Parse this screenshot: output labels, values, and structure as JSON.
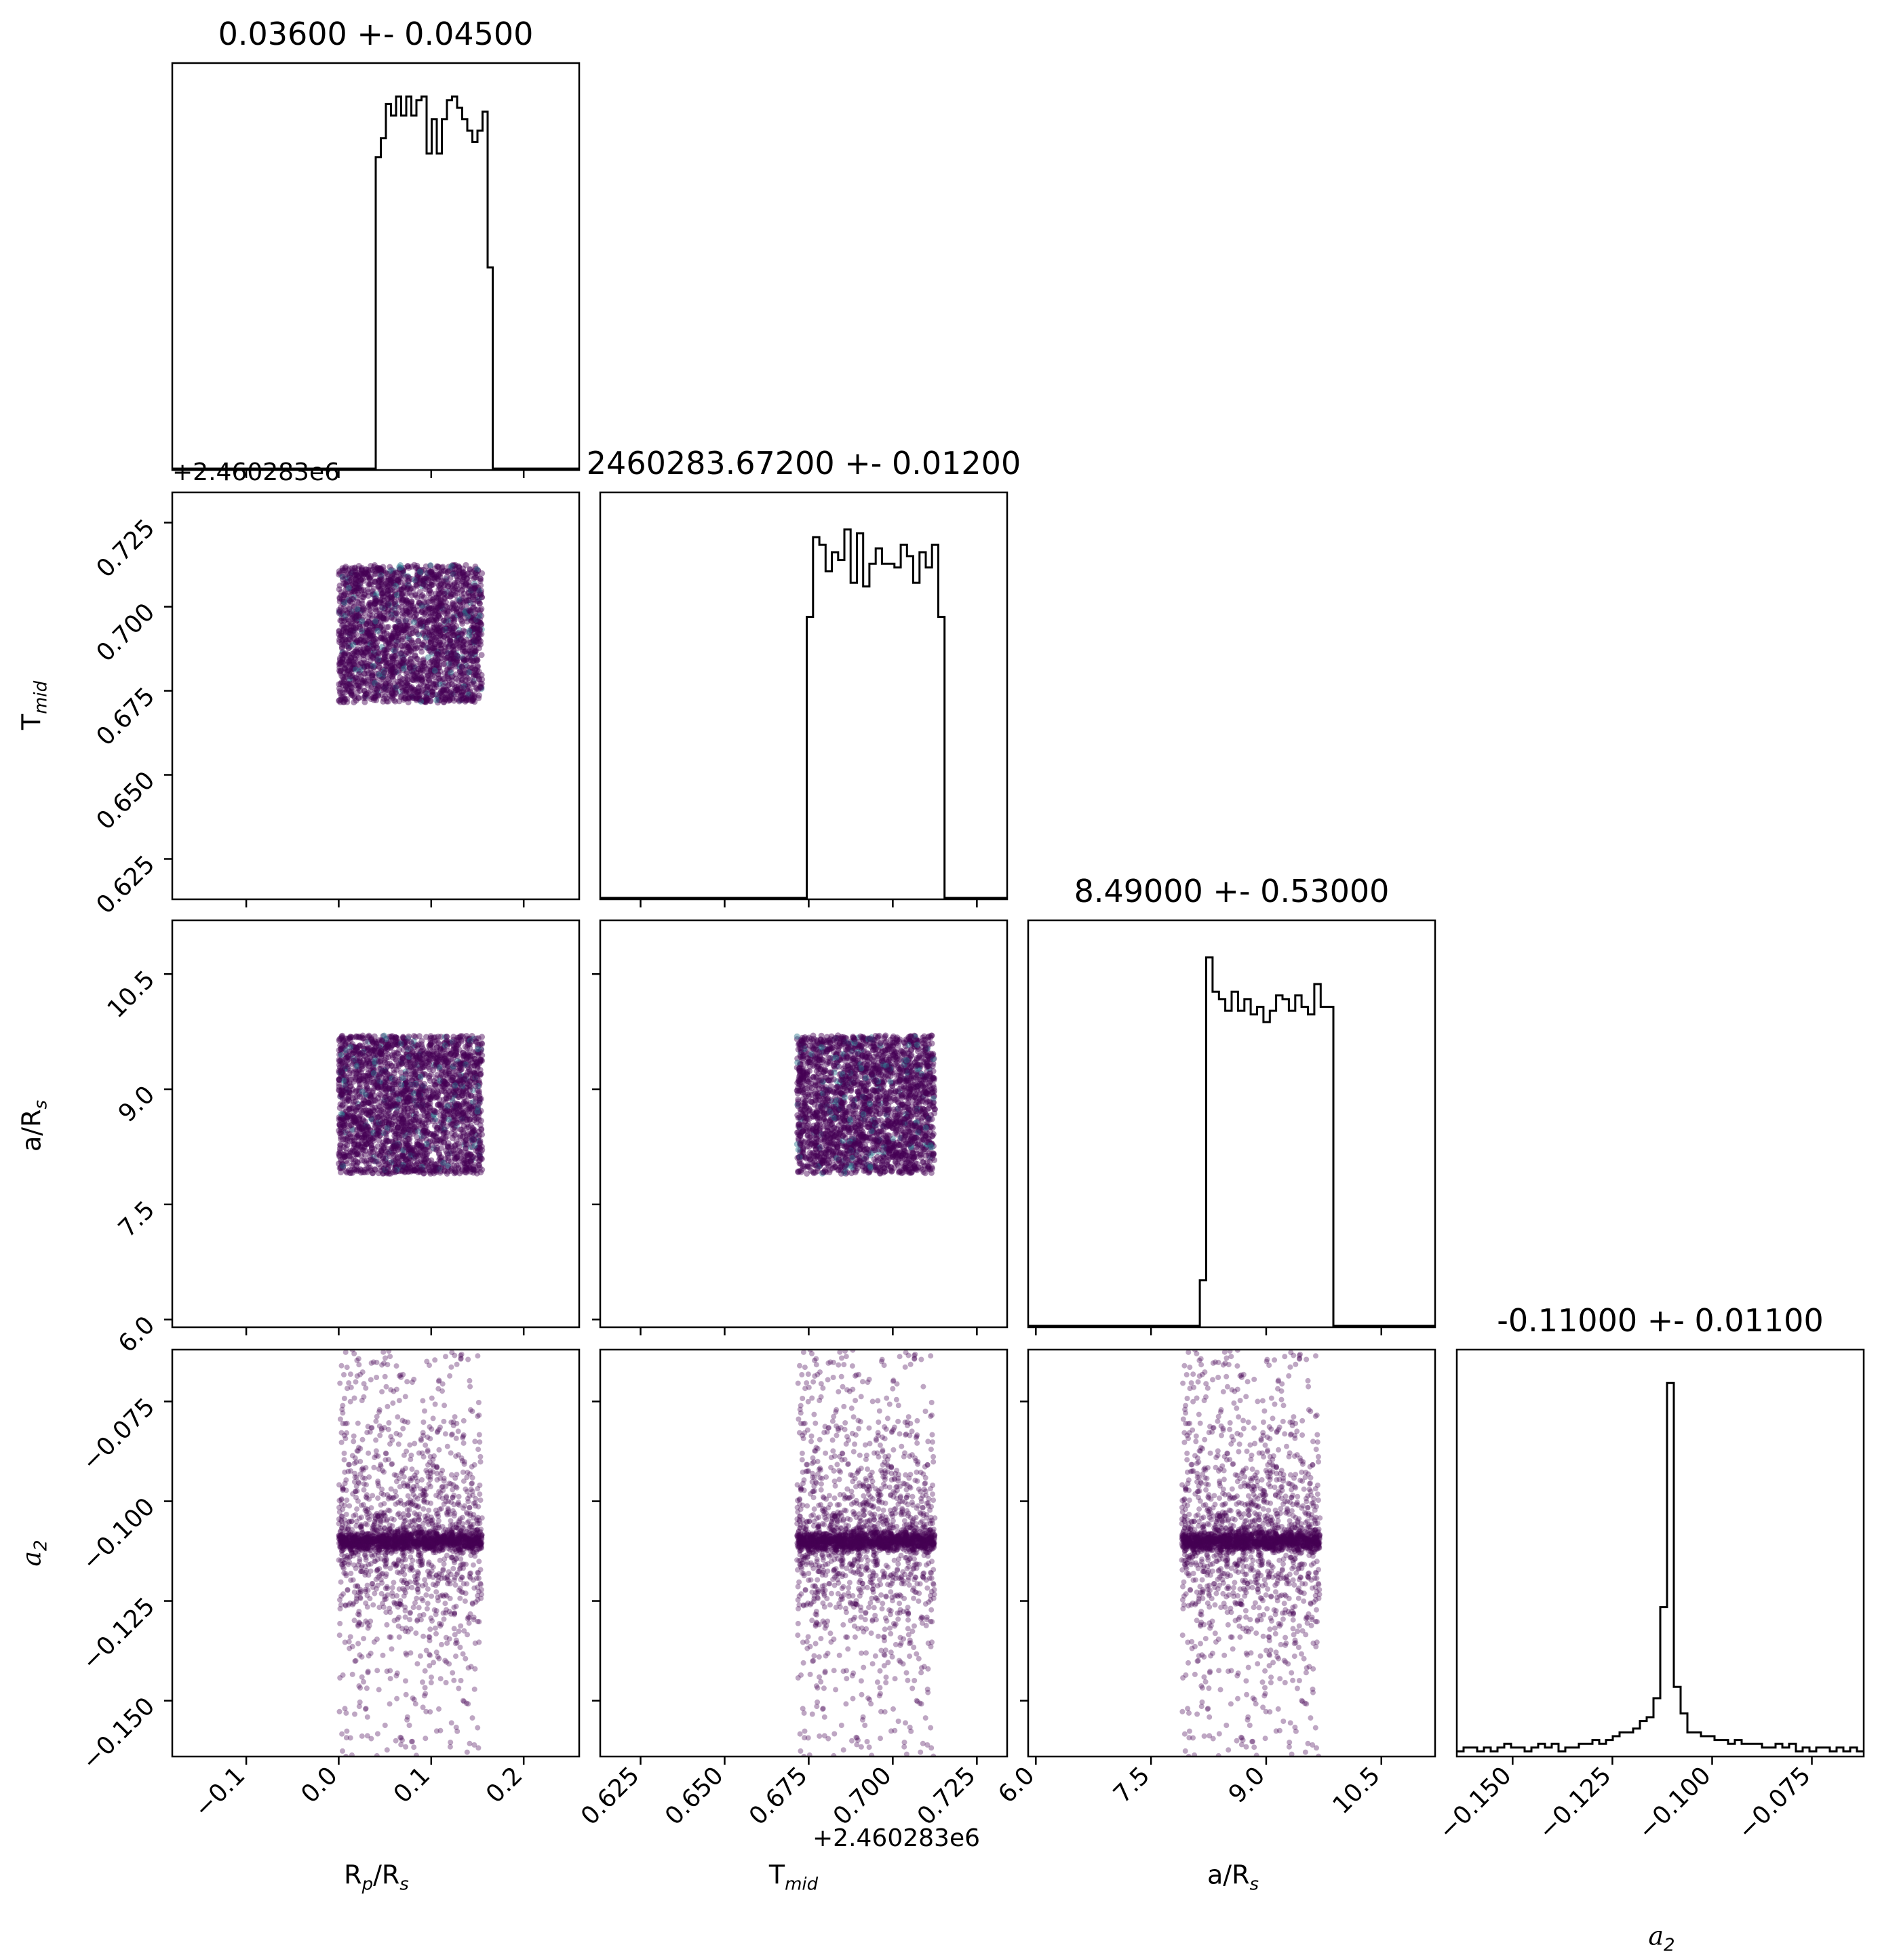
{
  "chart_data": {
    "type": "corner",
    "parameters": [
      {
        "key": "rp",
        "label_html": "R<sub>p</sub>/R<sub>s</sub>",
        "title": "0.03600 +- 0.04500",
        "range": [
          -0.18,
          0.26
        ],
        "ticks": [
          -0.1,
          0.0,
          0.1,
          0.2
        ],
        "tick_labels": [
          "−0.1",
          "0.0",
          "0.1",
          "0.2"
        ],
        "samples_range": [
          0.0,
          0.155
        ]
      },
      {
        "key": "tmid",
        "label_html": "T<sub>mid</sub>",
        "title": "2460283.67200 +- 0.01200",
        "range": [
          0.613,
          0.734
        ],
        "ticks": [
          0.625,
          0.65,
          0.675,
          0.7,
          0.725
        ],
        "tick_labels": [
          "0.625",
          "0.650",
          "0.675",
          "0.700",
          "0.725"
        ],
        "offset_label": "+2.460283e6",
        "samples_range": [
          0.6715,
          0.7125
        ]
      },
      {
        "key": "ars",
        "label_html": "a/R<sub>s</sub>",
        "title": "8.49000 +- 0.53000",
        "range": [
          5.9,
          11.2
        ],
        "ticks": [
          6.0,
          7.5,
          9.0,
          10.5
        ],
        "tick_labels": [
          "6.0",
          "7.5",
          "9.0",
          "10.5"
        ],
        "samples_range": [
          7.9,
          9.7
        ]
      },
      {
        "key": "a2",
        "label_html": "<i>a</i><sub>2</sub>",
        "title": "-0.11000 +- 0.01100",
        "range": [
          -0.164,
          -0.062
        ],
        "ticks": [
          -0.15,
          -0.125,
          -0.1,
          -0.075
        ],
        "tick_labels": [
          "−0.150",
          "−0.125",
          "−0.100",
          "−0.075"
        ],
        "samples_center": -0.11
      }
    ],
    "histograms": {
      "rp": [
        0,
        0,
        0,
        0,
        0,
        0,
        0,
        0,
        0,
        0,
        0,
        0,
        0,
        0,
        0,
        0,
        0,
        0,
        0,
        0,
        0,
        0,
        0,
        0,
        0,
        0,
        0,
        0,
        0,
        0,
        0,
        0,
        0,
        0,
        0,
        0,
        0,
        0,
        0,
        0,
        0.82,
        0.87,
        0.96,
        0.93,
        0.98,
        0.93,
        0.98,
        0.93,
        0.97,
        0.98,
        0.83,
        0.92,
        0.83,
        0.92,
        0.97,
        0.98,
        0.95,
        0.92,
        0.89,
        0.86,
        0.89,
        0.94,
        0.53,
        0,
        0,
        0,
        0,
        0,
        0,
        0,
        0,
        0,
        0,
        0,
        0,
        0,
        0,
        0,
        0,
        0
      ],
      "tmid": [
        0,
        0,
        0,
        0,
        0,
        0,
        0,
        0,
        0,
        0,
        0,
        0,
        0,
        0,
        0,
        0,
        0,
        0,
        0,
        0,
        0,
        0,
        0,
        0,
        0,
        0,
        0,
        0,
        0,
        0,
        0,
        0,
        0,
        0.74,
        0.95,
        0.93,
        0.86,
        0.91,
        0.89,
        0.97,
        0.83,
        0.96,
        0.82,
        0.88,
        0.92,
        0.88,
        0.88,
        0.87,
        0.93,
        0.9,
        0.83,
        0.91,
        0.87,
        0.93,
        0.74,
        0,
        0,
        0,
        0,
        0,
        0,
        0,
        0,
        0,
        0
      ],
      "ars": [
        0,
        0,
        0,
        0,
        0,
        0,
        0,
        0,
        0,
        0,
        0,
        0,
        0,
        0,
        0,
        0,
        0,
        0,
        0,
        0,
        0,
        0,
        0,
        0,
        0,
        0,
        0,
        0.12,
        0.97,
        0.88,
        0.86,
        0.83,
        0.88,
        0.83,
        0.86,
        0.82,
        0.84,
        0.8,
        0.83,
        0.87,
        0.86,
        0.83,
        0.87,
        0.84,
        0.82,
        0.9,
        0.84,
        0.84,
        0,
        0,
        0,
        0,
        0,
        0,
        0,
        0,
        0,
        0,
        0,
        0,
        0,
        0,
        0,
        0
      ],
      "a2": [
        0.01,
        0.02,
        0.02,
        0.01,
        0.02,
        0.01,
        0.02,
        0.03,
        0.02,
        0.02,
        0.01,
        0.02,
        0.03,
        0.02,
        0.03,
        0.01,
        0.02,
        0.02,
        0.03,
        0.03,
        0.04,
        0.03,
        0.04,
        0.05,
        0.06,
        0.06,
        0.07,
        0.09,
        0.1,
        0.15,
        0.39,
        0.98,
        0.18,
        0.11,
        0.06,
        0.06,
        0.05,
        0.05,
        0.04,
        0.04,
        0.03,
        0.04,
        0.03,
        0.03,
        0.03,
        0.02,
        0.02,
        0.03,
        0.02,
        0.03,
        0.01,
        0.02,
        0.01,
        0.02,
        0.02,
        0.01,
        0.02,
        0.01,
        0.02,
        0.01
      ]
    }
  },
  "colors": {
    "points": "#440154",
    "points_accent": "#2a788e",
    "axes": "#000000"
  }
}
